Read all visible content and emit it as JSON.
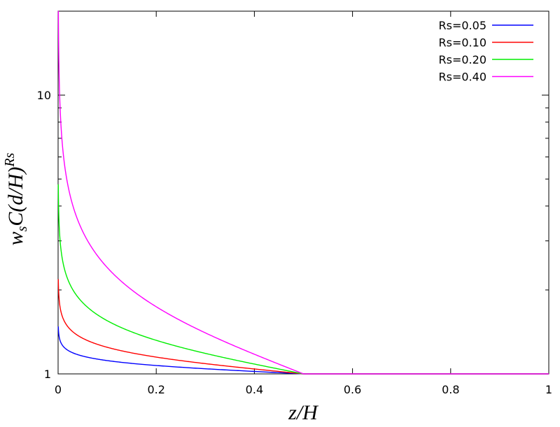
{
  "chart_data": {
    "type": "line",
    "xlabel": "z/H",
    "ylabel": {
      "base": "w",
      "sub": "s",
      "mid": "C(d/H)",
      "sup": "Rs"
    },
    "xlim": [
      0,
      1
    ],
    "ylim": [
      1,
      20
    ],
    "y_scale": "log",
    "grid": false,
    "legend_position": "top-right",
    "x_ticks": [
      0,
      0.2,
      0.4,
      0.6,
      0.8,
      1
    ],
    "x_tick_labels": [
      "0",
      "0.2",
      "0.4",
      "0.6",
      "0.8",
      "1"
    ],
    "y_tick_labels": [
      {
        "value": 1,
        "label": "1"
      },
      {
        "value": 10,
        "label": "10"
      }
    ],
    "y_minor_ticks": [
      2,
      3,
      4,
      5,
      6,
      7,
      8,
      9
    ],
    "series": [
      {
        "name": "Rs=0.05",
        "rs": 0.05,
        "color": "#0000ff",
        "x": [
          0.001,
          0.005,
          0.01,
          0.02,
          0.05,
          0.1,
          0.2,
          0.3,
          0.4,
          0.5,
          0.6,
          0.7,
          0.8,
          0.9,
          0.99
        ],
        "y": [
          1.41,
          1.3,
          1.26,
          1.22,
          1.16,
          1.12,
          1.08,
          1.06,
          1.05,
          1.04,
          1.03,
          1.02,
          1.01,
          1.01,
          1.0
        ]
      },
      {
        "name": "Rs=0.10",
        "rs": 0.1,
        "color": "#ff0000",
        "x": [
          0.001,
          0.005,
          0.01,
          0.02,
          0.05,
          0.1,
          0.2,
          0.3,
          0.4,
          0.5,
          0.6,
          0.7,
          0.8,
          0.9,
          0.99
        ],
        "y": [
          1.99,
          1.7,
          1.58,
          1.48,
          1.34,
          1.25,
          1.17,
          1.13,
          1.1,
          1.08,
          1.06,
          1.04,
          1.03,
          1.01,
          1.0
        ]
      },
      {
        "name": "Rs=0.20",
        "rs": 0.2,
        "color": "#00ee00",
        "x": [
          0.001,
          0.005,
          0.01,
          0.02,
          0.05,
          0.1,
          0.2,
          0.3,
          0.4,
          0.5,
          0.6,
          0.7,
          0.8,
          0.9,
          0.99
        ],
        "y": [
          3.98,
          2.88,
          2.51,
          2.18,
          1.8,
          1.55,
          1.36,
          1.26,
          1.2,
          1.15,
          1.11,
          1.08,
          1.06,
          1.03,
          1.0
        ]
      },
      {
        "name": "Rs=0.40",
        "rs": 0.4,
        "color": "#ff00ff",
        "x": [
          0.001,
          0.005,
          0.01,
          0.02,
          0.05,
          0.1,
          0.2,
          0.3,
          0.4,
          0.5,
          0.6,
          0.7,
          0.8,
          0.9,
          0.99
        ],
        "y": [
          15.8,
          8.32,
          6.31,
          4.78,
          3.25,
          2.41,
          1.85,
          1.59,
          1.43,
          1.32,
          1.23,
          1.16,
          1.11,
          1.06,
          1.0
        ]
      }
    ]
  }
}
